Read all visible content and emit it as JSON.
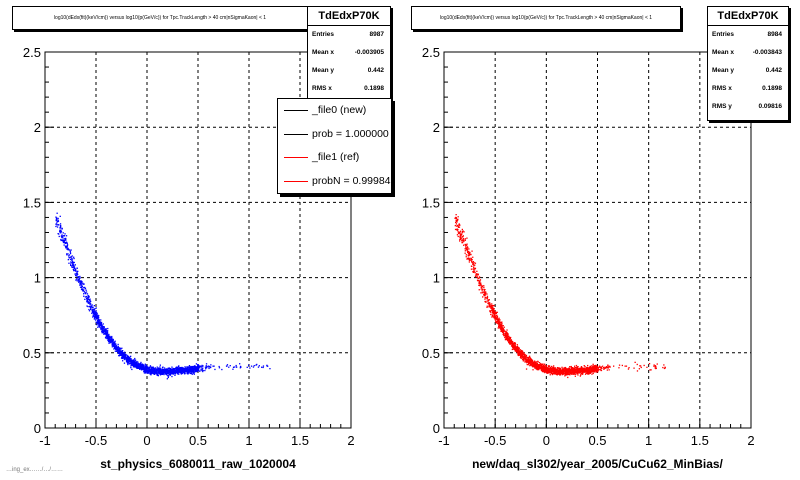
{
  "panels": [
    {
      "title": "log10(dEdx(fit)(keV/cm)) versus log10(p(GeV/c)) for Tpc.TrackLength > 40 cm|nSigmaKaon| < 1",
      "xlabel": "st_physics_6080011_raw_1020004",
      "color": "#0000ff",
      "stats": {
        "name": "TdEdxP70K",
        "rows": [
          {
            "label": "Entries",
            "value": "8987"
          },
          {
            "label": "Mean x",
            "value": "-0.003905"
          },
          {
            "label": "Mean y",
            "value": "0.442"
          },
          {
            "label": "RMS x",
            "value": "0.1898"
          }
        ]
      },
      "legend": [
        {
          "label": "_file0 (new)",
          "color": "#000000"
        },
        {
          "label": "prob = 1.000000",
          "color": "#000000"
        },
        {
          "label": "_file1 (ref)",
          "color": "#ff0000"
        },
        {
          "label": "probN = 0.99984",
          "color": "#ff0000"
        }
      ]
    },
    {
      "title": "log10(dEdx(fit)(keV/cm)) versus log10(p(GeV/c)) for Tpc.TrackLength > 40 cm|nSigmaKaon| < 1",
      "xlabel": "new/daq_sl302/year_2005/CuCu62_MinBias/",
      "color": "#ff0000",
      "stats": {
        "name": "TdEdxP70K",
        "rows": [
          {
            "label": "Entries",
            "value": "8984"
          },
          {
            "label": "Mean x",
            "value": "-0.003843"
          },
          {
            "label": "Mean y",
            "value": "0.442"
          },
          {
            "label": "RMS x",
            "value": "0.1898"
          },
          {
            "label": "RMS y",
            "value": "0.09816"
          }
        ]
      }
    }
  ],
  "bottom_fragment": "…ing_ex……/…/……",
  "chart_data": [
    {
      "type": "scatter",
      "title": "log10(dEdx(fit)(keV/cm)) versus log10(p(GeV/c)) for Tpc.TrackLength > 40 cm|nSigmaKaon| < 1",
      "xlabel": "st_physics_6080011_raw_1020004",
      "ylabel": "",
      "xlim": [
        -1,
        2
      ],
      "ylim": [
        0,
        2.5
      ],
      "xticks": [
        "-1",
        "-0.5",
        "0",
        "0.5",
        "1",
        "1.5",
        "2"
      ],
      "yticks": [
        "0",
        "0.5",
        "1",
        "1.5",
        "2",
        "2.5"
      ],
      "grid": true,
      "color": "#0000ff",
      "trend_x": [
        -0.9,
        -0.8,
        -0.7,
        -0.6,
        -0.5,
        -0.4,
        -0.3,
        -0.2,
        -0.1,
        0.0,
        0.1,
        0.2,
        0.3,
        0.4,
        0.5,
        0.6
      ],
      "trend_y": [
        1.4,
        1.22,
        1.04,
        0.88,
        0.74,
        0.62,
        0.53,
        0.46,
        0.42,
        0.39,
        0.38,
        0.38,
        0.385,
        0.39,
        0.4,
        0.41
      ],
      "n_points": 8987
    },
    {
      "type": "scatter",
      "title": "log10(dEdx(fit)(keV/cm)) versus log10(p(GeV/c)) for Tpc.TrackLength > 40 cm|nSigmaKaon| < 1",
      "xlabel": "new/daq_sl302/year_2005/CuCu62_MinBias/",
      "ylabel": "",
      "xlim": [
        -1,
        2
      ],
      "ylim": [
        0,
        2.5
      ],
      "xticks": [
        "-1",
        "-0.5",
        "0",
        "0.5",
        "1",
        "1.5",
        "2"
      ],
      "yticks": [
        "0",
        "0.5",
        "1",
        "1.5",
        "2",
        "2.5"
      ],
      "grid": true,
      "color": "#ff0000",
      "trend_x": [
        -0.9,
        -0.8,
        -0.7,
        -0.6,
        -0.5,
        -0.4,
        -0.3,
        -0.2,
        -0.1,
        0.0,
        0.1,
        0.2,
        0.3,
        0.4,
        0.5,
        0.6
      ],
      "trend_y": [
        1.4,
        1.22,
        1.04,
        0.88,
        0.74,
        0.62,
        0.53,
        0.46,
        0.42,
        0.39,
        0.38,
        0.38,
        0.385,
        0.39,
        0.4,
        0.41
      ],
      "n_points": 8984
    }
  ]
}
